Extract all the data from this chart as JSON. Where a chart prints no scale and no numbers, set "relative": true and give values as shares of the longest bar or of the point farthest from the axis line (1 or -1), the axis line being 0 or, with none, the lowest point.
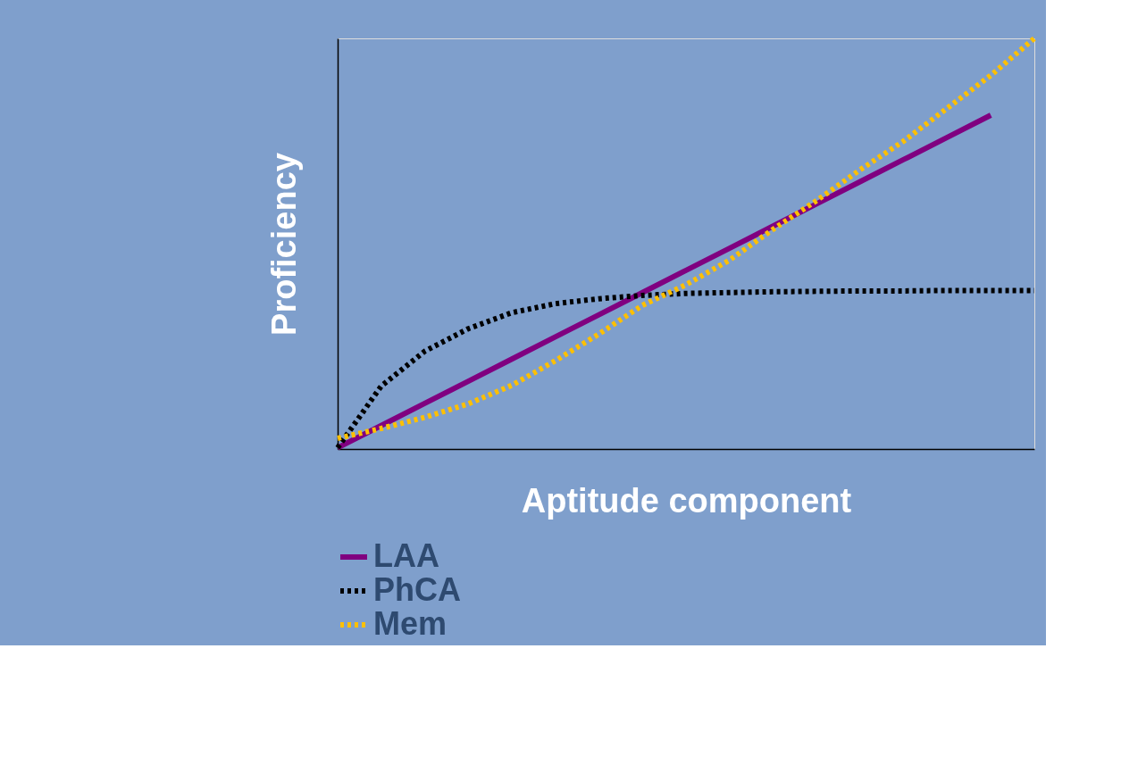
{
  "chart_data": {
    "type": "line",
    "relative": true,
    "xlabel": "Aptitude component",
    "ylabel": "Proficiency",
    "categories": [
      null,
      null,
      null,
      null,
      null,
      null,
      null,
      null,
      null,
      null,
      null,
      null,
      null,
      null,
      null,
      null,
      null
    ],
    "series": [
      {
        "name": "LAA",
        "color": "#800080",
        "line_style": "solid",
        "values": [
          0.003,
          0.057,
          0.111,
          0.165,
          0.219,
          0.273,
          0.327,
          0.381,
          0.435,
          0.489,
          0.543,
          0.597,
          0.651,
          0.705,
          0.759,
          0.813,
          null
        ]
      },
      {
        "name": "PhCA",
        "color": "#000000",
        "line_style": "dotted",
        "values": [
          0.003,
          0.153,
          0.238,
          0.293,
          0.332,
          0.354,
          0.366,
          0.374,
          0.379,
          0.381,
          0.383,
          0.384,
          0.385,
          0.385,
          0.386,
          0.386,
          0.386
        ]
      },
      {
        "name": "Mem",
        "color": "#ffc000",
        "line_style": "dotted",
        "values": [
          0.026,
          0.05,
          0.077,
          0.11,
          0.155,
          0.215,
          0.28,
          0.35,
          0.4,
          0.46,
          0.535,
          0.605,
          0.68,
          0.75,
          0.83,
          0.91,
          1.0
        ]
      }
    ],
    "legend": "bottom left",
    "grid": false,
    "tick_labels": false,
    "marker": "none"
  }
}
